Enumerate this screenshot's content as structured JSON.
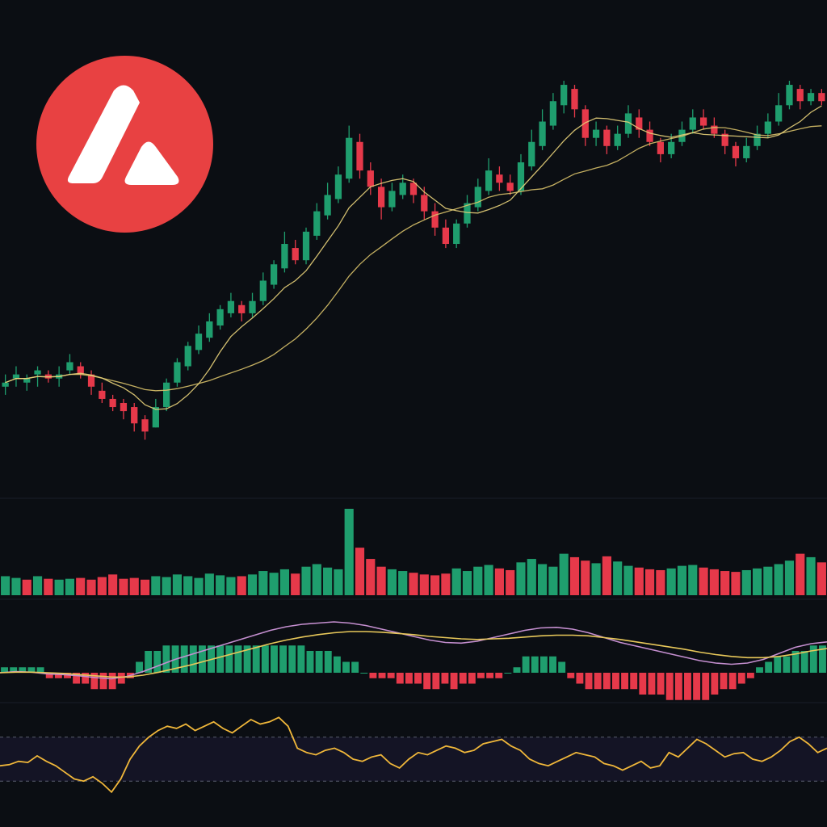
{
  "colors": {
    "background": "#0b0e13",
    "bull": "#1f9e6e",
    "bear": "#e6394a",
    "ma_fast": "#e8d27a",
    "ma_slow": "#d9c26a",
    "macd_line": "#c58fd0",
    "signal_line": "#e8c85a",
    "rsi_line": "#f0b73a",
    "rsi_band": "#141425",
    "logo_red": "#e84142",
    "logo_white": "#ffffff"
  },
  "logo": {
    "icon": "avalanche-logo-icon"
  },
  "chart_data": [
    {
      "type": "candlestick",
      "panel": "price",
      "grid": false,
      "ylim": [
        1,
        100
      ],
      "candles": [
        [
          25,
          26,
          23,
          28
        ],
        [
          27,
          28,
          25,
          30
        ],
        [
          26,
          27,
          24,
          28
        ],
        [
          28,
          29,
          25,
          30
        ],
        [
          28,
          27,
          26,
          29
        ],
        [
          27,
          28,
          25,
          30
        ],
        [
          29,
          31,
          28,
          33
        ],
        [
          30,
          28,
          27,
          31
        ],
        [
          28,
          25,
          23,
          29
        ],
        [
          24,
          22,
          21,
          26
        ],
        [
          22,
          20,
          19,
          23
        ],
        [
          21,
          19,
          17,
          22
        ],
        [
          20,
          16,
          14,
          21
        ],
        [
          17,
          14,
          12,
          18
        ],
        [
          15,
          20,
          15,
          22
        ],
        [
          20,
          26,
          19,
          27
        ],
        [
          26,
          31,
          25,
          32
        ],
        [
          30,
          35,
          29,
          36
        ],
        [
          34,
          38,
          33,
          40
        ],
        [
          37,
          41,
          36,
          43
        ],
        [
          40,
          44,
          39,
          45
        ],
        [
          43,
          46,
          42,
          48
        ],
        [
          45,
          43,
          41,
          46
        ],
        [
          43,
          46,
          42,
          48
        ],
        [
          46,
          51,
          45,
          53
        ],
        [
          50,
          55,
          49,
          56
        ],
        [
          54,
          60,
          53,
          63
        ],
        [
          59,
          56,
          55,
          61
        ],
        [
          56,
          63,
          55,
          64
        ],
        [
          62,
          68,
          61,
          70
        ],
        [
          67,
          72,
          66,
          75
        ],
        [
          71,
          77,
          70,
          79
        ],
        [
          76,
          86,
          75,
          89
        ],
        [
          85,
          78,
          76,
          87
        ],
        [
          78,
          74,
          72,
          80
        ],
        [
          74,
          69,
          66,
          76
        ],
        [
          69,
          73,
          68,
          75
        ],
        [
          72,
          75,
          71,
          77
        ],
        [
          75,
          72,
          70,
          76
        ],
        [
          72,
          68,
          66,
          74
        ],
        [
          68,
          64,
          62,
          70
        ],
        [
          64,
          60,
          59,
          66
        ],
        [
          60,
          65,
          59,
          66
        ],
        [
          65,
          70,
          64,
          72
        ],
        [
          69,
          74,
          68,
          76
        ],
        [
          73,
          78,
          72,
          81
        ],
        [
          77,
          75,
          73,
          79
        ],
        [
          75,
          73,
          72,
          77
        ],
        [
          73,
          80,
          72,
          82
        ],
        [
          79,
          85,
          78,
          88
        ],
        [
          84,
          90,
          83,
          93
        ],
        [
          89,
          95,
          88,
          97
        ],
        [
          94,
          99,
          92,
          100
        ],
        [
          98,
          93,
          91,
          99
        ],
        [
          93,
          86,
          84,
          94
        ],
        [
          86,
          88,
          84,
          90
        ],
        [
          88,
          84,
          82,
          89
        ],
        [
          84,
          87,
          83,
          89
        ],
        [
          87,
          92,
          86,
          94
        ],
        [
          91,
          88,
          86,
          93
        ],
        [
          88,
          85,
          84,
          90
        ],
        [
          85,
          82,
          80,
          86
        ],
        [
          82,
          85,
          81,
          87
        ],
        [
          85,
          88,
          84,
          90
        ],
        [
          88,
          91,
          87,
          93
        ],
        [
          91,
          89,
          88,
          93
        ],
        [
          89,
          87,
          86,
          91
        ],
        [
          87,
          84,
          82,
          88
        ],
        [
          84,
          81,
          79,
          85
        ],
        [
          81,
          84,
          80,
          86
        ],
        [
          84,
          87,
          83,
          89
        ],
        [
          87,
          90,
          86,
          92
        ],
        [
          90,
          94,
          89,
          97
        ],
        [
          94,
          99,
          93,
          100
        ],
        [
          98,
          95,
          93,
          99
        ],
        [
          95,
          97,
          94,
          98
        ],
        [
          97,
          95,
          94,
          98
        ]
      ]
    },
    {
      "type": "bar",
      "panel": "volume",
      "grid": false,
      "values": [
        22,
        20,
        18,
        22,
        19,
        18,
        19,
        20,
        18,
        21,
        24,
        19,
        20,
        18,
        22,
        21,
        24,
        22,
        20,
        25,
        23,
        21,
        22,
        24,
        28,
        26,
        30,
        25,
        33,
        36,
        32,
        30,
        100,
        55,
        42,
        33,
        30,
        28,
        26,
        24,
        23,
        25,
        31,
        28,
        33,
        35,
        31,
        29,
        38,
        42,
        36,
        33,
        48,
        44,
        40,
        37,
        45,
        39,
        34,
        32,
        30,
        29,
        31,
        34,
        35,
        32,
        30,
        28,
        27,
        29,
        31,
        33,
        36,
        40,
        48,
        44,
        38
      ],
      "direction": [
        "up",
        "up",
        "down",
        "up",
        "down",
        "up",
        "up",
        "down",
        "down",
        "down",
        "down",
        "down",
        "down",
        "down",
        "up",
        "up",
        "up",
        "up",
        "up",
        "up",
        "up",
        "up",
        "down",
        "up",
        "up",
        "up",
        "up",
        "down",
        "up",
        "up",
        "up",
        "up",
        "up",
        "down",
        "down",
        "down",
        "up",
        "up",
        "down",
        "down",
        "down",
        "down",
        "up",
        "up",
        "up",
        "up",
        "down",
        "down",
        "up",
        "up",
        "up",
        "up",
        "up",
        "down",
        "down",
        "up",
        "down",
        "up",
        "up",
        "down",
        "down",
        "down",
        "up",
        "up",
        "up",
        "down",
        "down",
        "down",
        "down",
        "up",
        "up",
        "up",
        "up",
        "up",
        "down",
        "up",
        "down"
      ]
    },
    {
      "type": "line",
      "panel": "macd",
      "grid": false,
      "series": [
        {
          "role": "macd",
          "values": [
            0,
            0.2,
            0.1,
            -0.2,
            -0.3,
            -0.5,
            -0.8,
            -1,
            -0.6,
            0.2,
            1.2,
            2.2,
            3,
            3.8,
            4.6,
            5.4,
            6.2,
            7,
            7.6,
            8,
            8.2,
            8.4,
            8.2,
            7.8,
            7.2,
            6.6,
            6,
            5.4,
            5,
            4.9,
            5.2,
            5.8,
            6.4,
            7,
            7.4,
            7.5,
            7.2,
            6.6,
            5.8,
            5,
            4.4,
            3.8,
            3.2,
            2.6,
            2,
            1.6,
            1.4,
            1.6,
            2.2,
            3.2,
            4.2,
            4.8,
            5.1
          ]
        },
        {
          "role": "signal",
          "values": [
            0,
            0.1,
            0.1,
            0,
            -0.1,
            -0.3,
            -0.5,
            -0.7,
            -0.7,
            -0.4,
            0.1,
            0.7,
            1.3,
            2,
            2.7,
            3.4,
            4.1,
            4.8,
            5.4,
            5.9,
            6.3,
            6.6,
            6.8,
            6.8,
            6.7,
            6.5,
            6.3,
            6,
            5.8,
            5.6,
            5.5,
            5.6,
            5.7,
            5.9,
            6.1,
            6.2,
            6.2,
            6.1,
            5.8,
            5.5,
            5.1,
            4.7,
            4.3,
            3.9,
            3.4,
            3,
            2.7,
            2.5,
            2.5,
            2.7,
            3.1,
            3.6,
            4
          ]
        }
      ]
    },
    {
      "type": "bar",
      "panel": "macd-histogram",
      "grid": false,
      "values": [
        1,
        1,
        1,
        1,
        1,
        -1,
        -1,
        -1,
        -2,
        -2,
        -3,
        -3,
        -3,
        -2,
        -1,
        2,
        4,
        4,
        5,
        5,
        5,
        5,
        5,
        5,
        5,
        5,
        5,
        5,
        5,
        5,
        5,
        5,
        5,
        5,
        4,
        4,
        4,
        3,
        2,
        2,
        0,
        -1,
        -1,
        -1,
        -2,
        -2,
        -2,
        -3,
        -3,
        -2,
        -3,
        -2,
        -2,
        -1,
        -1,
        -1,
        0,
        1,
        3,
        3,
        3,
        3,
        2,
        -1,
        -2,
        -3,
        -3,
        -3,
        -3,
        -3,
        -3,
        -4,
        -4,
        -4,
        -5,
        -5,
        -5,
        -5,
        -5,
        -4,
        -3,
        -3,
        -2,
        -1,
        1,
        2,
        3,
        3,
        4,
        4,
        5,
        5
      ]
    },
    {
      "type": "line",
      "panel": "rsi",
      "grid": false,
      "ylim": [
        0,
        100
      ],
      "series": [
        {
          "role": "rsi",
          "values": [
            44,
            45,
            48,
            47,
            53,
            48,
            44,
            38,
            32,
            30,
            34,
            28,
            20,
            32,
            50,
            62,
            70,
            76,
            80,
            78,
            82,
            76,
            80,
            84,
            78,
            74,
            80,
            86,
            82,
            84,
            88,
            80,
            60,
            56,
            54,
            58,
            60,
            56,
            50,
            48,
            52,
            54,
            46,
            42,
            50,
            56,
            54,
            58,
            62,
            60,
            56,
            58,
            64,
            66,
            68,
            62,
            58,
            50,
            46,
            44,
            48,
            52,
            56,
            54,
            52,
            46,
            44,
            40,
            44,
            48,
            42,
            44,
            56,
            52,
            60,
            68,
            64,
            58,
            52,
            55,
            56,
            50,
            48,
            52,
            58,
            66,
            70,
            64,
            56,
            60
          ]
        }
      ],
      "reference_levels": [
        70,
        30
      ]
    }
  ]
}
